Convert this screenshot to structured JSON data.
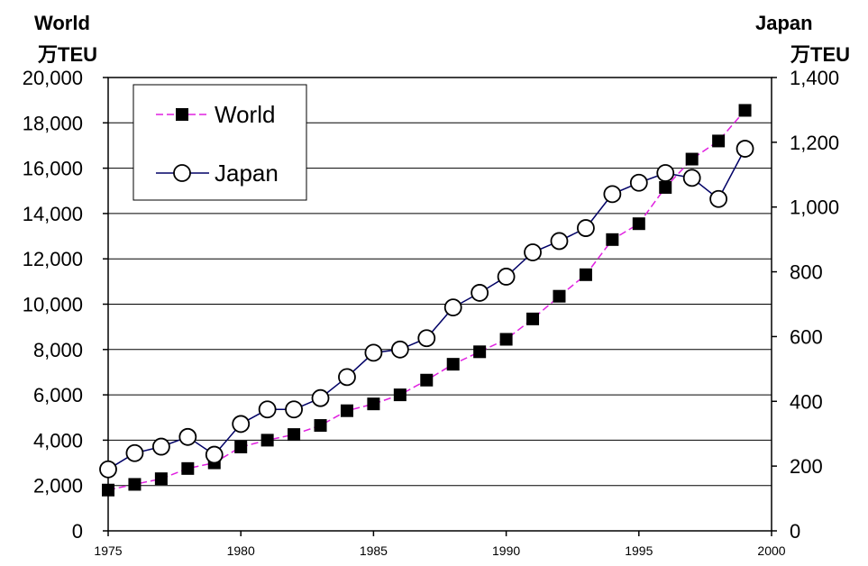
{
  "chart_data": {
    "type": "line",
    "left_axis": {
      "title": "World",
      "unit": "万TEU",
      "ylim": [
        0,
        20000
      ],
      "ticks": [
        "0",
        "2,000",
        "4,000",
        "6,000",
        "8,000",
        "10,000",
        "12,000",
        "14,000",
        "16,000",
        "18,000",
        "20,000"
      ],
      "tick_values": [
        0,
        2000,
        4000,
        6000,
        8000,
        10000,
        12000,
        14000,
        16000,
        18000,
        20000
      ]
    },
    "right_axis": {
      "title": "Japan",
      "unit": "万TEU",
      "ylim": [
        0,
        1400
      ],
      "ticks": [
        "0",
        "200",
        "400",
        "600",
        "800",
        "1,000",
        "1,200",
        "1,400"
      ],
      "tick_values": [
        0,
        200,
        400,
        600,
        800,
        1000,
        1200,
        1400
      ]
    },
    "x_axis": {
      "xlim": [
        1975,
        2000
      ],
      "ticks": [
        "1975",
        "1980",
        "1985",
        "1990",
        "1995",
        "2000"
      ],
      "tick_values": [
        1975,
        1980,
        1985,
        1990,
        1995,
        2000
      ]
    },
    "grid": "horizontal",
    "legend_position": "top-left",
    "series": [
      {
        "name": "World",
        "axis": "left",
        "color": "#e020e0",
        "line_style": "dashed",
        "marker": "filled-square",
        "x": [
          1975,
          1976,
          1977,
          1978,
          1979,
          1980,
          1981,
          1982,
          1983,
          1984,
          1985,
          1986,
          1987,
          1988,
          1989,
          1990,
          1991,
          1992,
          1993,
          1994,
          1995,
          1996,
          1997,
          1998,
          1999
        ],
        "values": [
          1800,
          2050,
          2300,
          2750,
          3000,
          3700,
          4000,
          4250,
          4650,
          5300,
          5600,
          6000,
          6650,
          7350,
          7900,
          8450,
          9350,
          10350,
          11300,
          12850,
          13550,
          15150,
          16400,
          17200,
          18550
        ]
      },
      {
        "name": "Japan",
        "axis": "right",
        "color": "#000066",
        "line_style": "solid",
        "marker": "open-circle",
        "x": [
          1975,
          1976,
          1977,
          1978,
          1979,
          1980,
          1981,
          1982,
          1983,
          1984,
          1985,
          1986,
          1987,
          1988,
          1989,
          1990,
          1991,
          1992,
          1993,
          1994,
          1995,
          1996,
          1997,
          1998,
          1999
        ],
        "values": [
          190,
          240,
          260,
          290,
          235,
          330,
          375,
          375,
          410,
          475,
          550,
          560,
          595,
          690,
          735,
          785,
          860,
          895,
          935,
          1040,
          1075,
          1105,
          1090,
          1025,
          1180
        ]
      }
    ]
  }
}
